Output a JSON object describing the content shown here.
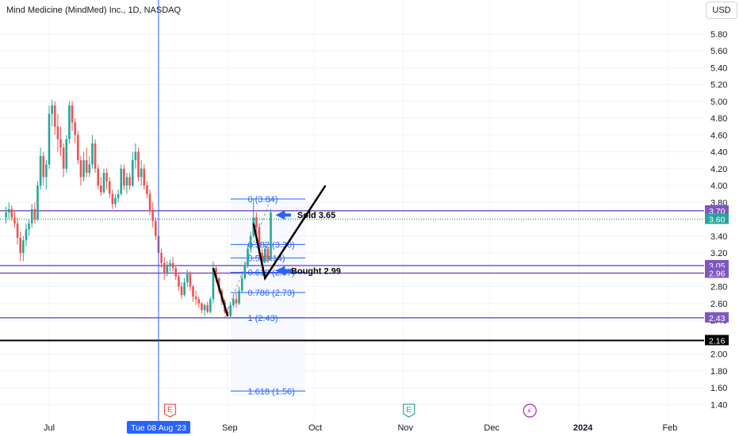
{
  "header": {
    "title": "Mind Medicine (MindMed) Inc., 1D, NASDAQ",
    "currency": "USD"
  },
  "chart_data": {
    "type": "candlestick",
    "title": "Mind Medicine (MindMed) Inc., 1D, NASDAQ",
    "ylim": [
      1.3,
      6.0
    ],
    "y_ticks": [
      "5.80",
      "5.60",
      "5.40",
      "5.20",
      "5.00",
      "4.80",
      "4.60",
      "4.40",
      "4.20",
      "4.00",
      "3.80",
      "3.40",
      "3.20",
      "2.80",
      "2.60",
      "2.40",
      "2.00",
      "1.80",
      "1.60",
      "1.40"
    ],
    "x_ticks": [
      {
        "label": "Jul",
        "day": 0
      },
      {
        "label": "Sep",
        "day": 62
      },
      {
        "label": "Oct",
        "day": 92
      },
      {
        "label": "Nov",
        "day": 123
      },
      {
        "label": "Dec",
        "day": 153
      },
      {
        "label": "2024",
        "day": 184
      },
      {
        "label": "Feb",
        "day": 215
      }
    ],
    "crosshair": {
      "label": "Tue 08 Aug '23",
      "day": 38
    },
    "horizontal_levels": [
      {
        "price": 3.7,
        "label": "3.70",
        "color": "#7e57c2"
      },
      {
        "price": 3.6,
        "label": "3.60",
        "color": "#26a69a"
      },
      {
        "price": 3.05,
        "label": "3.05",
        "color": "#7e57c2"
      },
      {
        "price": 2.96,
        "label": "2.96",
        "color": "#7e57c2"
      },
      {
        "price": 2.43,
        "label": "2.43",
        "color": "#7e57c2"
      },
      {
        "price": 2.16,
        "label": "2.16",
        "color": "#000000"
      }
    ],
    "fib_levels": [
      {
        "price": 3.84,
        "label": "0 (3.84)"
      },
      {
        "price": 3.3,
        "label": "0.382 (3.30)"
      },
      {
        "price": 3.14,
        "label": "0.5 (3.14)"
      },
      {
        "price": 2.97,
        "label": "0.618 (2.97)"
      },
      {
        "price": 2.73,
        "label": "0.786 (2.73)"
      },
      {
        "price": 2.43,
        "label": "1 (2.43)"
      },
      {
        "price": 1.56,
        "label": "1.618 (1.56)"
      }
    ],
    "annotations": [
      {
        "text": "Sold 3.65",
        "price": 3.65
      },
      {
        "text": "Bought 2.99",
        "price": 2.99
      }
    ],
    "event_markers": [
      {
        "symbol": "E",
        "day": 42
      },
      {
        "symbol": "E",
        "day": 125
      },
      {
        "symbol": "⚡",
        "day": 167
      }
    ],
    "colors": {
      "up": "#26a69a",
      "down": "#ef5350",
      "grid": "#f0f3fa",
      "fib": "#2962ff",
      "level": "#7e57c2"
    },
    "series": [
      {
        "d": -15,
        "o": 3.62,
        "h": 3.75,
        "l": 3.55,
        "c": 3.68
      },
      {
        "d": -14,
        "o": 3.68,
        "h": 3.8,
        "l": 3.6,
        "c": 3.72
      },
      {
        "d": -13,
        "o": 3.72,
        "h": 3.76,
        "l": 3.58,
        "c": 3.62
      },
      {
        "d": -12,
        "o": 3.62,
        "h": 3.7,
        "l": 3.5,
        "c": 3.55
      },
      {
        "d": -11,
        "o": 3.55,
        "h": 3.62,
        "l": 3.3,
        "c": 3.38
      },
      {
        "d": -10,
        "o": 3.38,
        "h": 3.45,
        "l": 3.1,
        "c": 3.2
      },
      {
        "d": -9,
        "o": 3.2,
        "h": 3.4,
        "l": 3.1,
        "c": 3.35
      },
      {
        "d": -8,
        "o": 3.35,
        "h": 3.55,
        "l": 3.28,
        "c": 3.48
      },
      {
        "d": -7,
        "o": 3.48,
        "h": 3.6,
        "l": 3.4,
        "c": 3.55
      },
      {
        "d": -6,
        "o": 3.55,
        "h": 3.78,
        "l": 3.5,
        "c": 3.72
      },
      {
        "d": -5,
        "o": 3.72,
        "h": 3.8,
        "l": 3.55,
        "c": 3.6
      },
      {
        "d": -4,
        "o": 3.6,
        "h": 4.05,
        "l": 3.58,
        "c": 4.0
      },
      {
        "d": -3,
        "o": 4.0,
        "h": 4.45,
        "l": 3.95,
        "c": 4.35
      },
      {
        "d": -2,
        "o": 4.35,
        "h": 4.4,
        "l": 4.0,
        "c": 4.1
      },
      {
        "d": -1,
        "o": 4.1,
        "h": 4.3,
        "l": 3.95,
        "c": 4.25
      },
      {
        "d": 0,
        "o": 4.25,
        "h": 4.95,
        "l": 4.2,
        "c": 4.85
      },
      {
        "d": 1,
        "o": 4.85,
        "h": 5.02,
        "l": 4.7,
        "c": 4.95
      },
      {
        "d": 2,
        "o": 4.95,
        "h": 5.0,
        "l": 4.6,
        "c": 4.7
      },
      {
        "d": 3,
        "o": 4.7,
        "h": 4.85,
        "l": 4.4,
        "c": 4.55
      },
      {
        "d": 4,
        "o": 4.55,
        "h": 4.7,
        "l": 4.35,
        "c": 4.45
      },
      {
        "d": 5,
        "o": 4.45,
        "h": 4.5,
        "l": 4.1,
        "c": 4.2
      },
      {
        "d": 6,
        "o": 4.2,
        "h": 4.6,
        "l": 4.15,
        "c": 4.55
      },
      {
        "d": 7,
        "o": 4.55,
        "h": 5.0,
        "l": 4.5,
        "c": 4.95
      },
      {
        "d": 8,
        "o": 4.95,
        "h": 5.0,
        "l": 4.65,
        "c": 4.75
      },
      {
        "d": 9,
        "o": 4.75,
        "h": 4.8,
        "l": 4.5,
        "c": 4.6
      },
      {
        "d": 10,
        "o": 4.6,
        "h": 4.65,
        "l": 4.25,
        "c": 4.3
      },
      {
        "d": 11,
        "o": 4.3,
        "h": 4.35,
        "l": 4.0,
        "c": 4.1
      },
      {
        "d": 12,
        "o": 4.1,
        "h": 4.4,
        "l": 4.05,
        "c": 4.3
      },
      {
        "d": 13,
        "o": 4.3,
        "h": 4.45,
        "l": 4.1,
        "c": 4.15
      },
      {
        "d": 14,
        "o": 4.15,
        "h": 4.35,
        "l": 4.1,
        "c": 4.25
      },
      {
        "d": 15,
        "o": 4.25,
        "h": 4.6,
        "l": 4.2,
        "c": 4.5
      },
      {
        "d": 16,
        "o": 4.5,
        "h": 4.55,
        "l": 4.15,
        "c": 4.2
      },
      {
        "d": 17,
        "o": 4.2,
        "h": 4.25,
        "l": 3.95,
        "c": 4.0
      },
      {
        "d": 18,
        "o": 4.0,
        "h": 4.1,
        "l": 3.88,
        "c": 3.92
      },
      {
        "d": 19,
        "o": 3.92,
        "h": 4.2,
        "l": 3.9,
        "c": 4.15
      },
      {
        "d": 20,
        "o": 4.15,
        "h": 4.2,
        "l": 3.95,
        "c": 4.05
      },
      {
        "d": 21,
        "o": 4.05,
        "h": 4.1,
        "l": 3.85,
        "c": 3.9
      },
      {
        "d": 22,
        "o": 3.9,
        "h": 3.95,
        "l": 3.72,
        "c": 3.78
      },
      {
        "d": 23,
        "o": 3.78,
        "h": 3.9,
        "l": 3.74,
        "c": 3.85
      },
      {
        "d": 24,
        "o": 3.85,
        "h": 3.95,
        "l": 3.8,
        "c": 3.9
      },
      {
        "d": 25,
        "o": 3.9,
        "h": 4.25,
        "l": 3.88,
        "c": 4.2
      },
      {
        "d": 26,
        "o": 4.2,
        "h": 4.25,
        "l": 3.95,
        "c": 4.0
      },
      {
        "d": 27,
        "o": 4.0,
        "h": 4.15,
        "l": 3.9,
        "c": 4.1
      },
      {
        "d": 28,
        "o": 4.1,
        "h": 4.15,
        "l": 3.95,
        "c": 4.0
      },
      {
        "d": 29,
        "o": 4.0,
        "h": 4.4,
        "l": 3.98,
        "c": 4.3
      },
      {
        "d": 30,
        "o": 4.3,
        "h": 4.5,
        "l": 4.2,
        "c": 4.4
      },
      {
        "d": 31,
        "o": 4.4,
        "h": 4.45,
        "l": 4.05,
        "c": 4.1
      },
      {
        "d": 32,
        "o": 4.1,
        "h": 4.3,
        "l": 4.0,
        "c": 4.2
      },
      {
        "d": 33,
        "o": 4.2,
        "h": 4.25,
        "l": 3.95,
        "c": 4.0
      },
      {
        "d": 34,
        "o": 4.0,
        "h": 4.05,
        "l": 3.85,
        "c": 3.9
      },
      {
        "d": 35,
        "o": 3.9,
        "h": 3.95,
        "l": 3.65,
        "c": 3.7
      },
      {
        "d": 36,
        "o": 3.7,
        "h": 3.8,
        "l": 3.5,
        "c": 3.58
      },
      {
        "d": 37,
        "o": 3.58,
        "h": 3.62,
        "l": 3.35,
        "c": 3.4
      },
      {
        "d": 38,
        "o": 3.4,
        "h": 3.45,
        "l": 3.15,
        "c": 3.2
      },
      {
        "d": 39,
        "o": 3.2,
        "h": 3.25,
        "l": 3.02,
        "c": 3.08
      },
      {
        "d": 40,
        "o": 3.08,
        "h": 3.15,
        "l": 2.88,
        "c": 2.95
      },
      {
        "d": 41,
        "o": 2.95,
        "h": 3.1,
        "l": 2.92,
        "c": 3.05
      },
      {
        "d": 42,
        "o": 3.05,
        "h": 3.12,
        "l": 2.98,
        "c": 3.08
      },
      {
        "d": 43,
        "o": 3.08,
        "h": 3.15,
        "l": 2.98,
        "c": 3.02
      },
      {
        "d": 44,
        "o": 3.02,
        "h": 3.05,
        "l": 2.88,
        "c": 2.92
      },
      {
        "d": 45,
        "o": 2.92,
        "h": 2.95,
        "l": 2.75,
        "c": 2.8
      },
      {
        "d": 46,
        "o": 2.8,
        "h": 2.85,
        "l": 2.65,
        "c": 2.7
      },
      {
        "d": 47,
        "o": 2.7,
        "h": 2.9,
        "l": 2.68,
        "c": 2.85
      },
      {
        "d": 48,
        "o": 2.85,
        "h": 3.0,
        "l": 2.8,
        "c": 2.95
      },
      {
        "d": 49,
        "o": 2.95,
        "h": 2.98,
        "l": 2.75,
        "c": 2.8
      },
      {
        "d": 50,
        "o": 2.8,
        "h": 2.82,
        "l": 2.62,
        "c": 2.68
      },
      {
        "d": 51,
        "o": 2.68,
        "h": 2.75,
        "l": 2.58,
        "c": 2.65
      },
      {
        "d": 52,
        "o": 2.65,
        "h": 2.68,
        "l": 2.55,
        "c": 2.6
      },
      {
        "d": 53,
        "o": 2.6,
        "h": 2.62,
        "l": 2.48,
        "c": 2.52
      },
      {
        "d": 54,
        "o": 2.52,
        "h": 2.6,
        "l": 2.45,
        "c": 2.58
      },
      {
        "d": 55,
        "o": 2.58,
        "h": 2.62,
        "l": 2.48,
        "c": 2.5
      },
      {
        "d": 56,
        "o": 2.5,
        "h": 2.68,
        "l": 2.48,
        "c": 2.65
      },
      {
        "d": 57,
        "o": 2.65,
        "h": 3.1,
        "l": 2.6,
        "c": 3.02
      },
      {
        "d": 58,
        "o": 3.02,
        "h": 3.05,
        "l": 2.85,
        "c": 2.9
      },
      {
        "d": 59,
        "o": 2.9,
        "h": 2.92,
        "l": 2.72,
        "c": 2.75
      },
      {
        "d": 60,
        "o": 2.75,
        "h": 2.78,
        "l": 2.58,
        "c": 2.62
      },
      {
        "d": 61,
        "o": 2.62,
        "h": 2.65,
        "l": 2.48,
        "c": 2.5
      },
      {
        "d": 62,
        "o": 2.5,
        "h": 2.55,
        "l": 2.42,
        "c": 2.45
      },
      {
        "d": 63,
        "o": 2.45,
        "h": 2.62,
        "l": 2.43,
        "c": 2.58
      },
      {
        "d": 64,
        "o": 2.58,
        "h": 2.7,
        "l": 2.55,
        "c": 2.65
      },
      {
        "d": 65,
        "o": 2.65,
        "h": 2.72,
        "l": 2.55,
        "c": 2.6
      },
      {
        "d": 66,
        "o": 2.6,
        "h": 2.8,
        "l": 2.58,
        "c": 2.75
      },
      {
        "d": 67,
        "o": 2.75,
        "h": 2.95,
        "l": 2.72,
        "c": 2.9
      },
      {
        "d": 68,
        "o": 2.9,
        "h": 3.1,
        "l": 2.88,
        "c": 3.05
      },
      {
        "d": 69,
        "o": 3.05,
        "h": 3.3,
        "l": 3.02,
        "c": 3.25
      },
      {
        "d": 70,
        "o": 3.25,
        "h": 3.45,
        "l": 3.2,
        "c": 3.4
      },
      {
        "d": 71,
        "o": 3.4,
        "h": 3.84,
        "l": 3.38,
        "c": 3.62
      },
      {
        "d": 72,
        "o": 3.62,
        "h": 3.68,
        "l": 3.45,
        "c": 3.5
      },
      {
        "d": 73,
        "o": 3.5,
        "h": 3.55,
        "l": 3.15,
        "c": 3.2
      },
      {
        "d": 74,
        "o": 3.2,
        "h": 3.25,
        "l": 3.05,
        "c": 3.1
      },
      {
        "d": 75,
        "o": 3.1,
        "h": 3.3,
        "l": 3.08,
        "c": 3.25
      },
      {
        "d": 76,
        "o": 3.25,
        "h": 3.28,
        "l": 3.08,
        "c": 3.12
      },
      {
        "d": 77,
        "o": 3.12,
        "h": 3.72,
        "l": 3.1,
        "c": 3.68
      }
    ]
  }
}
